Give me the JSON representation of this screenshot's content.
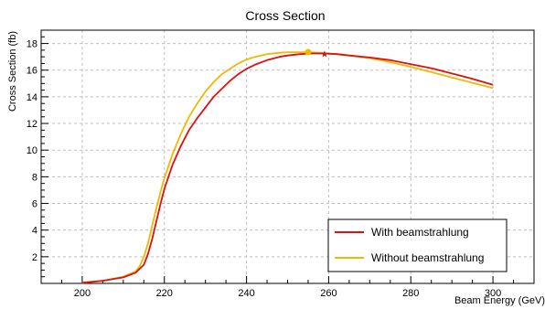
{
  "chart_data": {
    "type": "line",
    "title": "Cross Section",
    "xlabel": "Beam Energy (GeV)",
    "ylabel": "Cross Section (fb)",
    "xlim": [
      190,
      310
    ],
    "ylim": [
      0,
      19
    ],
    "x_ticks": [
      200,
      220,
      240,
      260,
      280,
      300
    ],
    "y_ticks": [
      2,
      4,
      6,
      8,
      10,
      12,
      14,
      16,
      18
    ],
    "grid": true,
    "legend_position": "bottom-right",
    "series": [
      {
        "name": "With beamstrahlung",
        "color": "#dd1111",
        "marker": "star",
        "marker_point": [
          259,
          17.2
        ],
        "x": [
          200,
          205,
          210,
          213,
          215,
          216,
          217,
          218,
          219,
          220,
          222,
          224,
          226,
          228,
          230,
          232,
          234,
          236,
          238,
          240,
          242,
          245,
          248,
          250,
          253,
          256,
          259,
          262,
          265,
          270,
          275,
          280,
          285,
          290,
          295,
          300
        ],
        "y": [
          0.05,
          0.2,
          0.45,
          0.8,
          1.4,
          2.2,
          3.3,
          4.6,
          5.9,
          7.1,
          8.9,
          10.3,
          11.5,
          12.4,
          13.2,
          14.0,
          14.6,
          15.2,
          15.7,
          16.1,
          16.4,
          16.75,
          17.0,
          17.1,
          17.2,
          17.25,
          17.25,
          17.2,
          17.1,
          16.95,
          16.75,
          16.45,
          16.15,
          15.75,
          15.35,
          14.9
        ]
      },
      {
        "name": "Without beamstrahlung",
        "color": "#f0b800",
        "marker": "circle",
        "marker_point": [
          255,
          17.35
        ],
        "x": [
          200,
          205,
          210,
          213,
          214,
          215,
          216,
          217,
          218,
          219,
          220,
          222,
          224,
          226,
          228,
          230,
          232,
          234,
          236,
          238,
          240,
          242,
          245,
          248,
          250,
          253,
          255,
          258,
          262,
          265,
          270,
          275,
          280,
          285,
          290,
          295,
          300
        ],
        "y": [
          0.05,
          0.2,
          0.5,
          0.9,
          1.3,
          2.0,
          3.0,
          4.3,
          5.6,
          6.8,
          7.9,
          9.7,
          11.2,
          12.5,
          13.5,
          14.4,
          15.1,
          15.7,
          16.1,
          16.5,
          16.8,
          17.0,
          17.2,
          17.3,
          17.35,
          17.35,
          17.35,
          17.3,
          17.2,
          17.1,
          16.9,
          16.6,
          16.25,
          15.85,
          15.45,
          15.05,
          14.65
        ]
      }
    ]
  }
}
